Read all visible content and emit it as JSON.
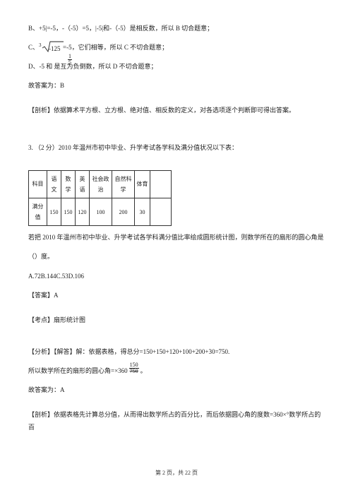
{
  "b_line_1": "B、+5|=-5，-（-5）=5，|-5|和-（-5）是相反数，所以 B 切合题意；",
  "c_line_pre": "C、",
  "sqrt_index": "3",
  "sqrt_rad": "-125",
  "c_line_post": "=-5，它们相等，所以 C 不切合题意；",
  "d_line_pre": "D、-5 和 是互为负倒数，所以 D 不切合题意；",
  "frac1_num": "1",
  "frac1_den": "5",
  "ans_b": "故答案为：B",
  "analysis1": "【剖析】依据算术平方根、立方根、绝对值、相反数的定义，对各选项逐个判断即可得出答案。",
  "q3_prefix": "3.",
  "q3_points": "（2 分）",
  "q3_text_1": "2010 年温州市初中毕业、升学考试各学科及满分值状况以下表：",
  "table_headers": [
    "科目",
    "语文",
    "数学",
    "英语",
    "社会政治",
    "自然科学",
    "体育"
  ],
  "table_label": "满分值",
  "table_values": [
    "150",
    "150",
    "120",
    "100",
    "200",
    "30"
  ],
  "q3_text_2": "若把 2010 年温州市初中毕业、升学考试各学科满分值比率绘成圆形统计图，则数学所在的扇形的圆心角是",
  "q3_text_3": "（）度。",
  "q3_options": "A.72B.144C.53D.106",
  "answer_a": "【答案】A",
  "topic": "【考点】扇形统计图",
  "explain_pre": "【分析】【解答】解：依据表格，得总分=150+150+120+100+200+30=750.",
  "line_pre": "所以数学所在的扇形的圆心角=×360",
  "frac2_num": "150",
  "frac2_den": "750",
  "line_post": "。",
  "ans_a2": "故答案为：A",
  "analysis2": "【剖析】依据表格先计算总分值，从而得出数学所占的百分比，而后依据圆心角的度数=360×°数学所占的百",
  "page_cur": "2",
  "page_total": "22",
  "footer_tpl_a": "第 ",
  "footer_tpl_b": " 页，共 ",
  "footer_tpl_c": " 页",
  "col_w_label": "26",
  "col_w_val": "20",
  "col_w_social": "32",
  "col_w_nat": "32",
  "col_w_pe": "22",
  "col_w_blank": "30"
}
